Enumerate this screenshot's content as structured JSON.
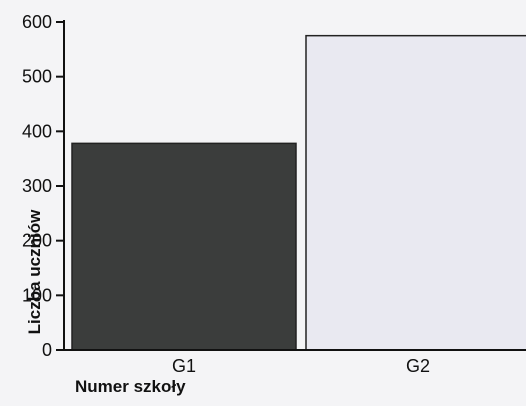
{
  "chart_data": {
    "type": "bar",
    "categories": [
      "G1",
      "G2"
    ],
    "values": [
      378,
      575
    ],
    "bar_colors": [
      "#3b3d3c",
      "#e9e9f1"
    ],
    "xlabel": "Numer szkoły",
    "ylabel": "Liczba uczniów",
    "ylim": [
      0,
      600
    ],
    "yticks": [
      0,
      100,
      200,
      300,
      400,
      500,
      600
    ],
    "grid": false,
    "legend": "none"
  }
}
